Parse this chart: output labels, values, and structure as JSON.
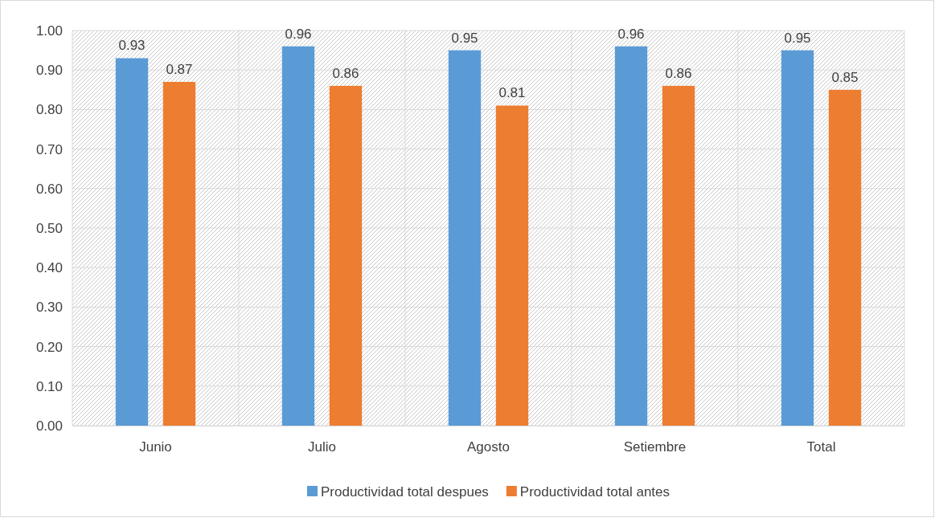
{
  "chart_data": {
    "type": "bar",
    "categories": [
      "Junio",
      "Julio",
      "Agosto",
      "Setiembre",
      "Total"
    ],
    "series": [
      {
        "name": "Productividad total despues",
        "color": "#5b9bd5",
        "values": [
          0.93,
          0.96,
          0.95,
          0.96,
          0.95
        ]
      },
      {
        "name": "Productividad total antes",
        "color": "#ed7d31",
        "values": [
          0.87,
          0.86,
          0.81,
          0.86,
          0.85
        ]
      }
    ],
    "ylim": [
      0,
      1
    ],
    "yticks": [
      {
        "value": 0,
        "label": "0.00"
      },
      {
        "value": 0.1,
        "label": "0.10"
      },
      {
        "value": 0.2,
        "label": "0.20"
      },
      {
        "value": 0.3,
        "label": "0.30"
      },
      {
        "value": 0.4,
        "label": "0.40"
      },
      {
        "value": 0.5,
        "label": "0.50"
      },
      {
        "value": 0.6,
        "label": "0.60"
      },
      {
        "value": 0.7,
        "label": "0.70"
      },
      {
        "value": 0.8,
        "label": "0.80"
      },
      {
        "value": 0.9,
        "label": "0.90"
      },
      {
        "value": 1,
        "label": "1.00"
      }
    ],
    "grid": true,
    "legend": "bottom",
    "data_labels": true
  }
}
